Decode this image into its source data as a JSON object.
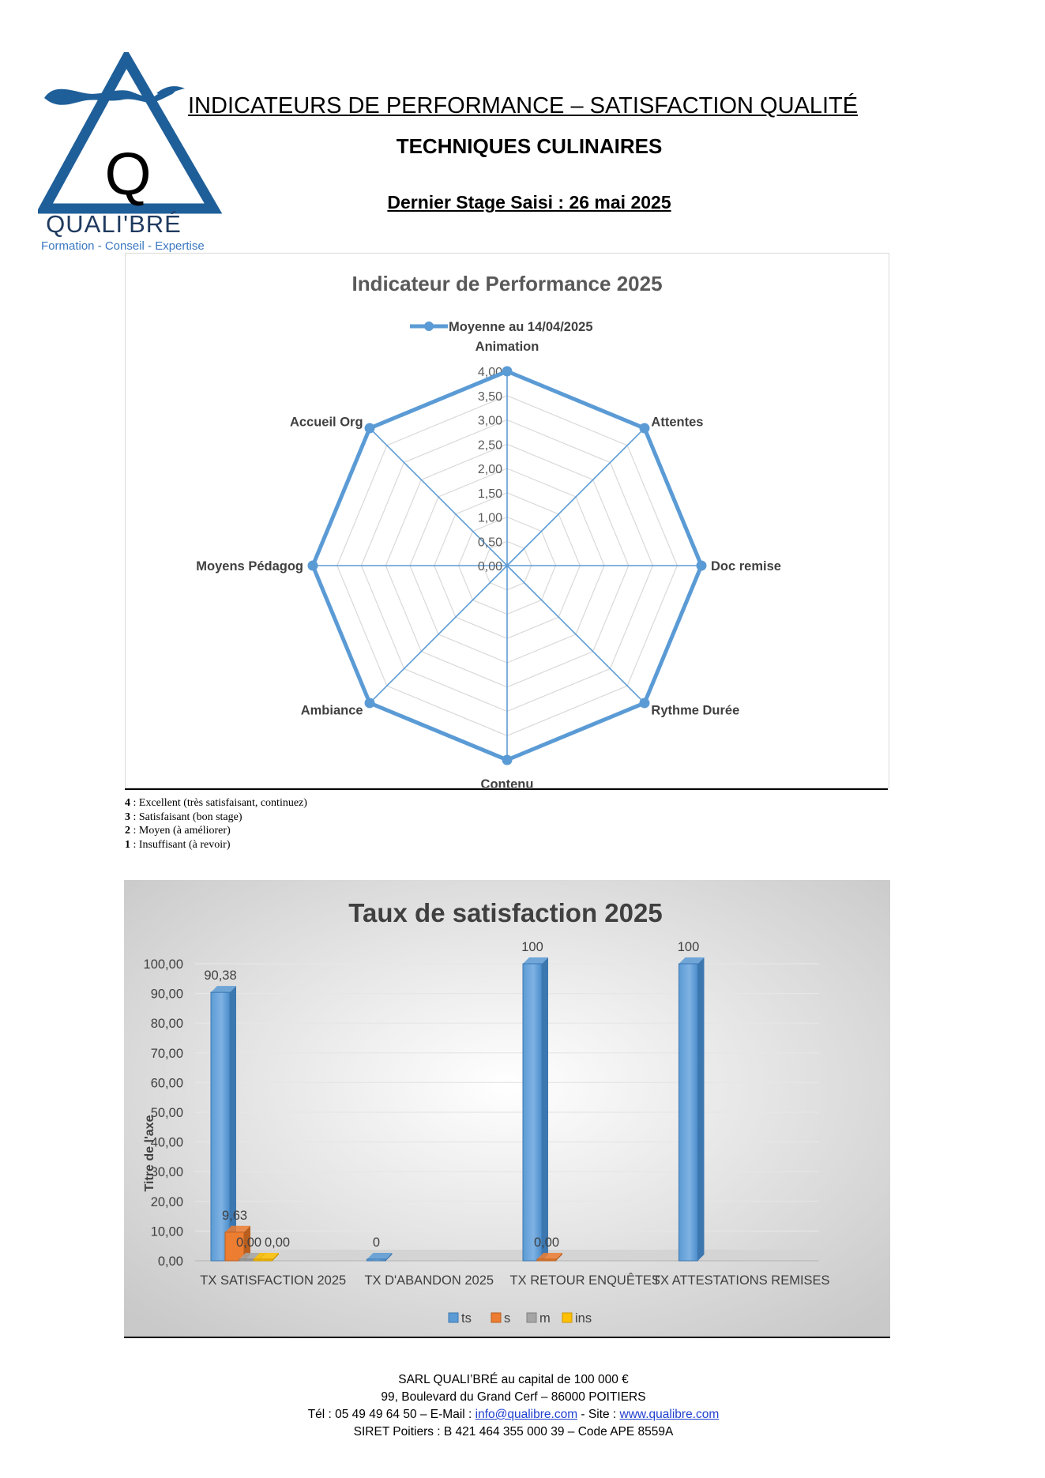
{
  "header": {
    "logo_name": "QUALI'BRÉ",
    "logo_tagline": "Formation - Conseil - Expertise",
    "logo_letter": "Q",
    "title": "INDICATEURS DE PERFORMANCE – SATISFACTION QUALITÉ",
    "subtitle": "TECHNIQUES CULINAIRES",
    "last_stage": "Dernier Stage Saisi : 26 mai 2025"
  },
  "colors": {
    "brand_blue": "#1f5f99",
    "radar_line": "#5b9bd5",
    "bar_ts": "#5b9bd5",
    "bar_s": "#ed7d31",
    "bar_m": "#a5a5a5",
    "bar_ins": "#ffc000"
  },
  "chart_data": [
    {
      "type": "radar",
      "title": "Indicateur de Performance 2025",
      "legend_position": "top",
      "series": [
        {
          "name": "Moyenne au 14/04/2025",
          "values": [
            4.0,
            4.0,
            4.0,
            4.0,
            4.0,
            4.0,
            4.0,
            4.0
          ]
        }
      ],
      "categories": [
        "Animation",
        "Attentes",
        "Doc remise",
        "Rythme Durée",
        "Contenu",
        "Ambiance",
        "Moyens Pédagog",
        "Accueil Org"
      ],
      "axis_ticks": [
        "0,00",
        "0,50",
        "1,00",
        "1,50",
        "2,00",
        "2,50",
        "3,00",
        "3,50",
        "4,00"
      ],
      "rmax": 4.0
    },
    {
      "type": "bar",
      "title": "Taux de satisfaction 2025",
      "ylabel": "Titre de l'axe",
      "ylim": [
        0,
        100
      ],
      "y_ticks": [
        "0,00",
        "10,00",
        "20,00",
        "30,00",
        "40,00",
        "50,00",
        "60,00",
        "70,00",
        "80,00",
        "90,00",
        "100,00"
      ],
      "legend_position": "bottom",
      "categories": [
        "TX SATISFACTION 2025",
        "TX D'ABANDON 2025",
        "TX RETOUR ENQUÊTES",
        "TX ATTESTATIONS REMISES"
      ],
      "series": [
        {
          "name": "ts",
          "values": [
            90.38,
            0,
            100,
            100
          ],
          "labels": [
            "90,38",
            "0",
            "100",
            "100"
          ]
        },
        {
          "name": "s",
          "values": [
            9.63,
            null,
            0,
            null
          ],
          "labels": [
            "9,63",
            "",
            "0,00",
            ""
          ]
        },
        {
          "name": "m",
          "values": [
            0,
            null,
            null,
            null
          ],
          "labels": [
            "0,00",
            "",
            "",
            ""
          ]
        },
        {
          "name": "ins",
          "values": [
            0,
            null,
            null,
            null
          ],
          "labels": [
            "0,00",
            "",
            "",
            ""
          ]
        }
      ]
    }
  ],
  "legend_notes": [
    {
      "score": "4",
      "text": " : Excellent (très satisfaisant, continuez)"
    },
    {
      "score": "3",
      "text": " : Satisfaisant (bon stage)"
    },
    {
      "score": "2",
      "text": " : Moyen (à améliorer)"
    },
    {
      "score": "1",
      "text": " : Insuffisant (à revoir)"
    }
  ],
  "footer": {
    "line1": "SARL QUALI’BRÉ au capital de 100 000 €",
    "line2": "99, Boulevard du Grand Cerf – 86000 POITIERS",
    "line3_prefix": "Tél : 05 49 49 64 50 – E-Mail : ",
    "email": "info@qualibre.com",
    "line3_mid": " - Site : ",
    "site": "www.qualibre.com",
    "line4": "SIRET Poitiers : B 421 464 355 000 39 – Code APE 8559A"
  }
}
